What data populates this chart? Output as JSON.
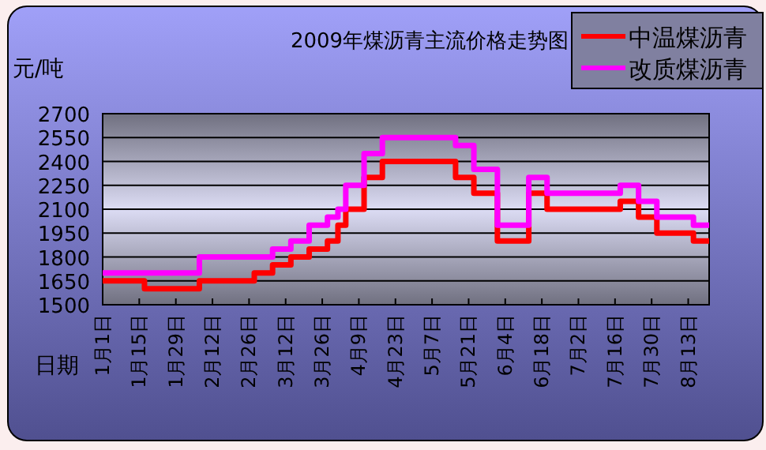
{
  "chart_data": {
    "type": "step",
    "title": "2009年煤沥青主流价格走势图",
    "xlabel": "日期",
    "ylabel": "元/吨",
    "ylim": [
      1500,
      2700
    ],
    "yticks": [
      1500,
      1650,
      1800,
      1950,
      2100,
      2250,
      2400,
      2550,
      2700
    ],
    "xlim": [
      "2009-01-01",
      "2009-08-21"
    ],
    "xticks": [
      {
        "value": "2009-01-01",
        "label": "1月1日"
      },
      {
        "value": "2009-01-15",
        "label": "1月15日"
      },
      {
        "value": "2009-01-29",
        "label": "1月29日"
      },
      {
        "value": "2009-02-12",
        "label": "2月12日"
      },
      {
        "value": "2009-02-26",
        "label": "2月26日"
      },
      {
        "value": "2009-03-12",
        "label": "3月12日"
      },
      {
        "value": "2009-03-26",
        "label": "3月26日"
      },
      {
        "value": "2009-04-09",
        "label": "4月9日"
      },
      {
        "value": "2009-04-23",
        "label": "4月23日"
      },
      {
        "value": "2009-05-07",
        "label": "5月7日"
      },
      {
        "value": "2009-05-21",
        "label": "5月21日"
      },
      {
        "value": "2009-06-04",
        "label": "6月4日"
      },
      {
        "value": "2009-06-18",
        "label": "6月18日"
      },
      {
        "value": "2009-07-02",
        "label": "7月2日"
      },
      {
        "value": "2009-07-16",
        "label": "7月16日"
      },
      {
        "value": "2009-07-30",
        "label": "7月30日"
      },
      {
        "value": "2009-08-13",
        "label": "8月13日"
      }
    ],
    "grid": "y",
    "legend": "top right",
    "line_style": "solid",
    "series": [
      {
        "name": "中温煤沥青",
        "color": "#ff0000",
        "x": [
          "2009-01-01",
          "2009-01-17",
          "2009-02-07",
          "2009-02-28",
          "2009-03-07",
          "2009-03-14",
          "2009-03-21",
          "2009-03-28",
          "2009-04-01",
          "2009-04-04",
          "2009-04-11",
          "2009-04-18",
          "2009-05-16",
          "2009-05-23",
          "2009-06-01",
          "2009-06-13",
          "2009-06-20",
          "2009-07-18",
          "2009-07-25",
          "2009-08-01",
          "2009-08-15",
          "2009-08-21"
        ],
        "values": [
          1650,
          1600,
          1650,
          1700,
          1750,
          1800,
          1850,
          1900,
          2000,
          2100,
          2300,
          2400,
          2300,
          2200,
          1900,
          2200,
          2100,
          2150,
          2050,
          1950,
          1900,
          1900
        ]
      },
      {
        "name": "改质煤沥青",
        "color": "#ff00ff",
        "x": [
          "2009-01-01",
          "2009-02-07",
          "2009-03-07",
          "2009-03-14",
          "2009-03-21",
          "2009-03-28",
          "2009-04-01",
          "2009-04-04",
          "2009-04-11",
          "2009-04-18",
          "2009-05-16",
          "2009-05-23",
          "2009-06-01",
          "2009-06-13",
          "2009-06-20",
          "2009-07-18",
          "2009-07-25",
          "2009-08-01",
          "2009-08-15",
          "2009-08-21"
        ],
        "values": [
          1700,
          1800,
          1850,
          1900,
          2000,
          2050,
          2100,
          2250,
          2450,
          2550,
          2500,
          2350,
          2000,
          2300,
          2200,
          2250,
          2150,
          2050,
          2000,
          2000
        ]
      }
    ]
  }
}
